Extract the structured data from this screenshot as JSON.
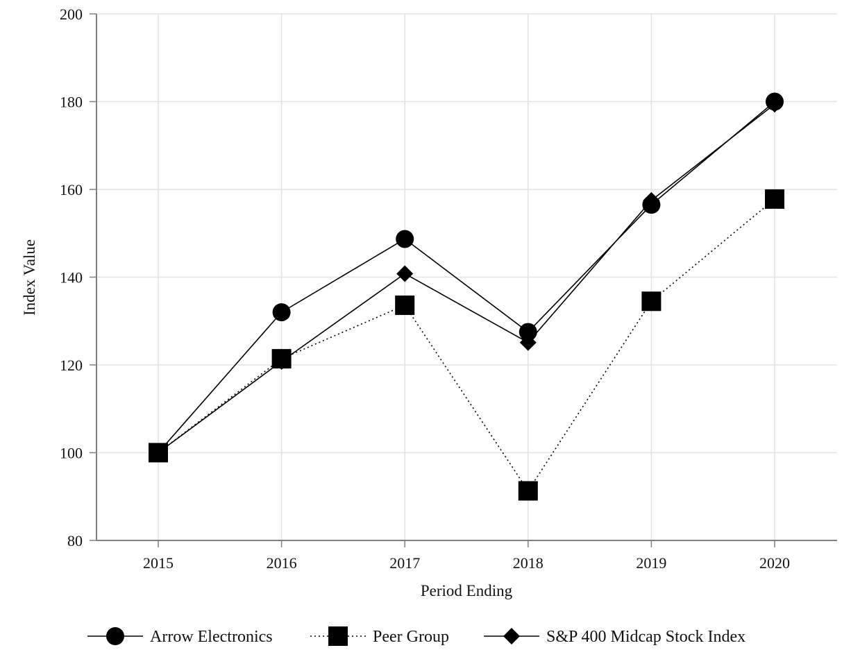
{
  "chart_data": {
    "type": "line",
    "title": "",
    "xlabel": "Period Ending",
    "ylabel": "Index Value",
    "x": [
      "2015",
      "2016",
      "2017",
      "2018",
      "2019",
      "2020"
    ],
    "ylim": [
      80,
      200
    ],
    "yticks": [
      80,
      100,
      120,
      140,
      160,
      180,
      200
    ],
    "grid": true,
    "legend_position": "bottom",
    "series": [
      {
        "name": "Arrow Electronics",
        "marker": "circle",
        "line_style": "solid",
        "values": [
          100,
          132,
          148.7,
          127.5,
          156.5,
          180
        ]
      },
      {
        "name": "Peer Group",
        "marker": "square",
        "line_style": "dotted",
        "values": [
          100,
          121.4,
          133.6,
          91.3,
          134.5,
          157.8
        ]
      },
      {
        "name": "S&P 400 Midcap Stock Index",
        "marker": "diamond",
        "line_style": "solid",
        "values": [
          100,
          120.8,
          140.8,
          125.1,
          157.5,
          179.4
        ]
      }
    ],
    "colors": {
      "line": "#000000",
      "grid": "#e3e3e3",
      "axis": "#7f7f7f"
    }
  }
}
